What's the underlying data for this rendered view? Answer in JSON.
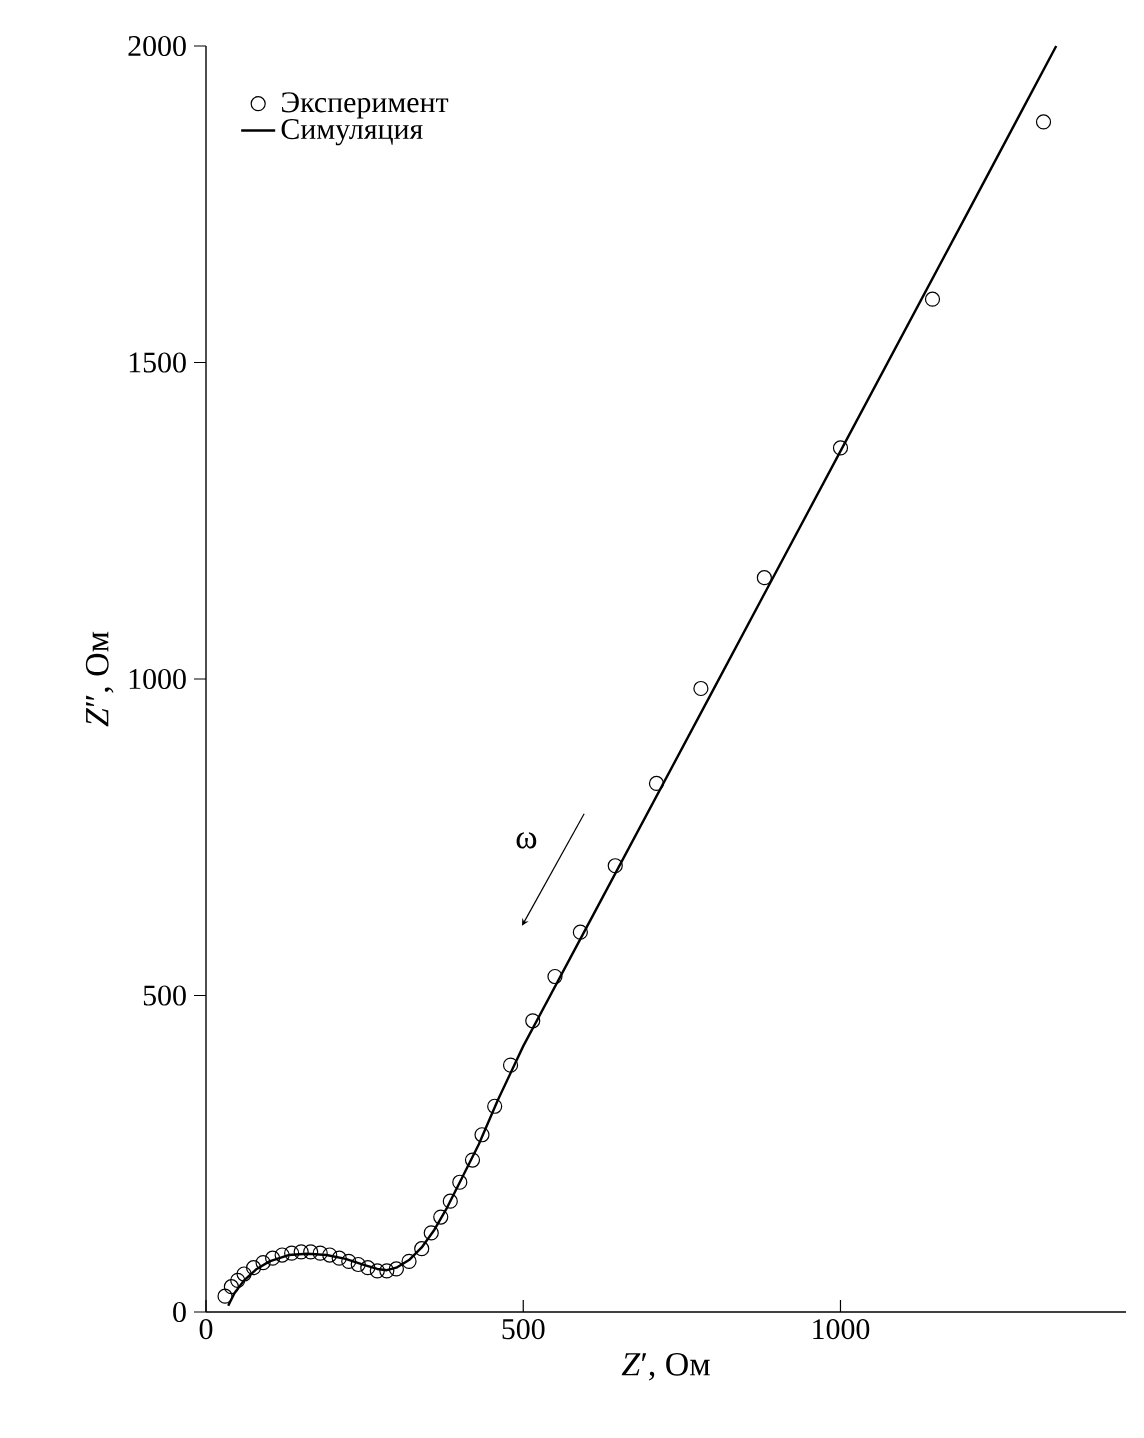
{
  "chart_data": {
    "type": "scatter",
    "xlabel": "*Z*′, Ом",
    "ylabel": "*Z*″, Ом",
    "xlim": [
      0,
      1450
    ],
    "ylim": [
      0,
      2000
    ],
    "xticks": [
      0,
      500,
      1000
    ],
    "yticks": [
      0,
      500,
      1000,
      1500,
      2000
    ],
    "legend": "top left",
    "annotations": [
      "ω"
    ],
    "series": [
      {
        "name": "Эксперимент",
        "marker": "circle",
        "color": "#000000",
        "x": [
          30,
          40,
          50,
          60,
          75,
          90,
          105,
          120,
          135,
          150,
          165,
          180,
          195,
          210,
          225,
          240,
          255,
          270,
          285,
          300,
          320,
          340,
          355,
          370,
          385,
          400,
          420,
          435,
          455,
          480,
          515,
          550,
          590,
          645,
          710,
          780,
          880,
          1000,
          1145,
          1320
        ],
        "values": [
          25,
          40,
          50,
          60,
          70,
          78,
          85,
          90,
          93,
          95,
          95,
          93,
          90,
          85,
          80,
          75,
          70,
          65,
          65,
          68,
          80,
          100,
          125,
          150,
          175,
          205,
          240,
          280,
          325,
          390,
          460,
          530,
          600,
          705,
          835,
          985,
          1160,
          1365,
          1600,
          1880
        ]
      },
      {
        "name": "Симуляция",
        "type": "line",
        "marker": "none",
        "line_style": "solid",
        "color": "#000000",
        "x": [
          35,
          45,
          60,
          80,
          100,
          130,
          160,
          190,
          220,
          250,
          270,
          285,
          300,
          320,
          340,
          360,
          380,
          400,
          430,
          460,
          500,
          600,
          800,
          1000,
          1200,
          1340
        ],
        "values": [
          10,
          30,
          50,
          68,
          80,
          90,
          92,
          90,
          84,
          74,
          68,
          66,
          70,
          82,
          102,
          130,
          165,
          205,
          265,
          335,
          420,
          608,
          984,
          1360,
          1736,
          2000
        ]
      }
    ]
  }
}
